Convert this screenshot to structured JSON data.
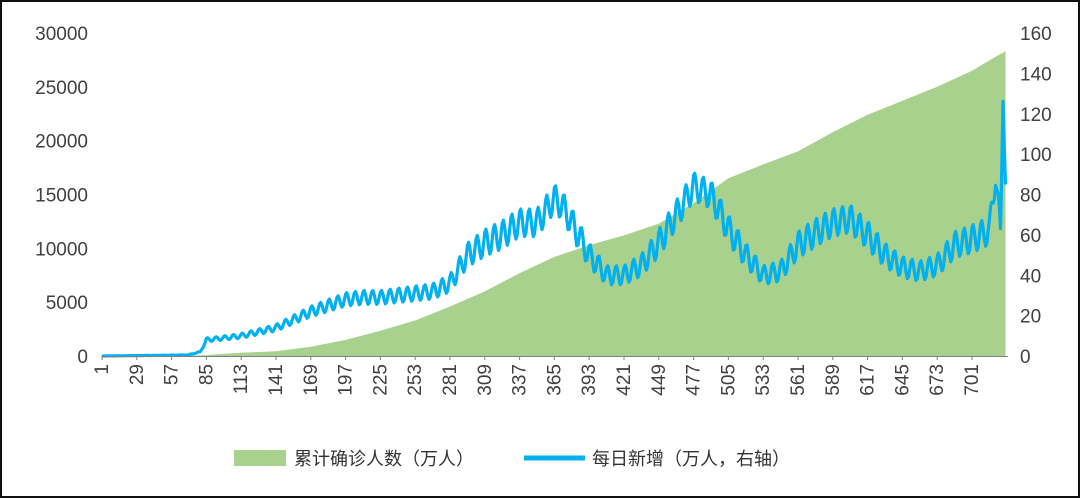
{
  "chart_data": {
    "type": "area+line",
    "title": "",
    "xlabel": "",
    "ylabel_left": "",
    "ylabel_right": "",
    "x_range": [
      1,
      730
    ],
    "x_ticks": [
      "1",
      "29",
      "57",
      "85",
      "113",
      "141",
      "169",
      "197",
      "225",
      "253",
      "281",
      "309",
      "337",
      "365",
      "393",
      "421",
      "449",
      "477",
      "505",
      "533",
      "561",
      "589",
      "617",
      "645",
      "673",
      "701"
    ],
    "y_left": {
      "min": 0,
      "max": 30000,
      "ticks": [
        "0",
        "5000",
        "10000",
        "15000",
        "20000",
        "25000",
        "30000"
      ]
    },
    "y_right": {
      "min": 0,
      "max": 160,
      "ticks": [
        "0",
        "20",
        "40",
        "60",
        "80",
        "100",
        "120",
        "140",
        "160"
      ]
    },
    "grid": false,
    "legend_position": "bottom",
    "series": [
      {
        "name": "累计确诊人数（万人）",
        "kind": "area",
        "axis": "left",
        "color": "#a9d18e",
        "points": [
          [
            1,
            0
          ],
          [
            50,
            10
          ],
          [
            70,
            30
          ],
          [
            85,
            80
          ],
          [
            100,
            200
          ],
          [
            113,
            300
          ],
          [
            141,
            450
          ],
          [
            169,
            850
          ],
          [
            197,
            1500
          ],
          [
            225,
            2350
          ],
          [
            253,
            3300
          ],
          [
            281,
            4600
          ],
          [
            309,
            6000
          ],
          [
            337,
            7700
          ],
          [
            365,
            9200
          ],
          [
            393,
            10300
          ],
          [
            421,
            11200
          ],
          [
            449,
            12300
          ],
          [
            477,
            14200
          ],
          [
            505,
            16500
          ],
          [
            533,
            17800
          ],
          [
            561,
            19000
          ],
          [
            589,
            20800
          ],
          [
            617,
            22400
          ],
          [
            645,
            23700
          ],
          [
            673,
            25000
          ],
          [
            701,
            26500
          ],
          [
            720,
            27800
          ],
          [
            728,
            28300
          ]
        ]
      },
      {
        "name": "每日新增（万人，右轴）",
        "kind": "line",
        "axis": "right",
        "color": "#00b0f0",
        "points": [
          [
            1,
            0
          ],
          [
            70,
            0.5
          ],
          [
            80,
            2
          ],
          [
            85,
            8
          ],
          [
            100,
            9
          ],
          [
            113,
            10
          ],
          [
            141,
            14
          ],
          [
            155,
            18
          ],
          [
            169,
            22
          ],
          [
            183,
            25
          ],
          [
            197,
            28
          ],
          [
            211,
            29
          ],
          [
            225,
            29
          ],
          [
            239,
            30
          ],
          [
            253,
            31
          ],
          [
            267,
            32
          ],
          [
            281,
            36
          ],
          [
            295,
            50
          ],
          [
            309,
            56
          ],
          [
            323,
            60
          ],
          [
            337,
            66
          ],
          [
            351,
            66
          ],
          [
            365,
            78
          ],
          [
            372,
            74
          ],
          [
            379,
            66
          ],
          [
            393,
            50
          ],
          [
            407,
            40
          ],
          [
            421,
            40
          ],
          [
            435,
            45
          ],
          [
            449,
            56
          ],
          [
            463,
            70
          ],
          [
            477,
            84
          ],
          [
            491,
            80
          ],
          [
            505,
            63
          ],
          [
            519,
            50
          ],
          [
            533,
            40
          ],
          [
            547,
            42
          ],
          [
            561,
            55
          ],
          [
            575,
            61
          ],
          [
            589,
            66
          ],
          [
            603,
            68
          ],
          [
            617,
            60
          ],
          [
            631,
            50
          ],
          [
            645,
            44
          ],
          [
            659,
            42
          ],
          [
            673,
            45
          ],
          [
            687,
            55
          ],
          [
            701,
            58
          ],
          [
            715,
            62
          ],
          [
            720,
            90
          ],
          [
            724,
            60
          ],
          [
            726,
            133
          ],
          [
            728,
            85
          ]
        ]
      }
    ]
  }
}
